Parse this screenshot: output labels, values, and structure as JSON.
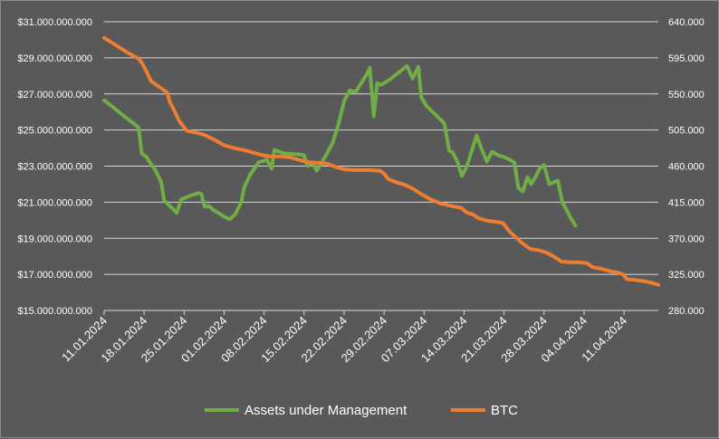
{
  "chart_data": {
    "type": "line",
    "title": "",
    "y_left": {
      "range": [
        15000000000,
        31000000000
      ],
      "ticks": [
        {
          "v": 15000000000,
          "label": "$15.000.000.000"
        },
        {
          "v": 17000000000,
          "label": "$17.000.000.000"
        },
        {
          "v": 19000000000,
          "label": "$19.000.000.000"
        },
        {
          "v": 21000000000,
          "label": "$21.000.000.000"
        },
        {
          "v": 23000000000,
          "label": "$23.000.000.000"
        },
        {
          "v": 25000000000,
          "label": "$25.000.000.000"
        },
        {
          "v": 27000000000,
          "label": "$27.000.000.000"
        },
        {
          "v": 29000000000,
          "label": "$29.000.000.000"
        },
        {
          "v": 31000000000,
          "label": "$31.000.000.000"
        }
      ]
    },
    "y_right": {
      "range": [
        280000,
        640000
      ],
      "ticks": [
        {
          "v": 280000,
          "label": "280.000"
        },
        {
          "v": 325000,
          "label": "325.000"
        },
        {
          "v": 370000,
          "label": "370.000"
        },
        {
          "v": 415000,
          "label": "415.000"
        },
        {
          "v": 460000,
          "label": "460.000"
        },
        {
          "v": 505000,
          "label": "505.000"
        },
        {
          "v": 550000,
          "label": "550.000"
        },
        {
          "v": 595000,
          "label": "595.000"
        },
        {
          "v": 640000,
          "label": "640.000"
        }
      ]
    },
    "x_range": [
      0,
      97
    ],
    "x_ticks": [
      {
        "d": 0,
        "label": "11.01.2024"
      },
      {
        "d": 7,
        "label": "18.01.2024"
      },
      {
        "d": 14,
        "label": "25.01.2024"
      },
      {
        "d": 21,
        "label": "01.02.2024"
      },
      {
        "d": 28,
        "label": "08.02.2024"
      },
      {
        "d": 35,
        "label": "15.02.2024"
      },
      {
        "d": 42,
        "label": "22.02.2024"
      },
      {
        "d": 49,
        "label": "29.02.2024"
      },
      {
        "d": 56,
        "label": "07.03.2024"
      },
      {
        "d": 63,
        "label": "14.03.2024"
      },
      {
        "d": 70,
        "label": "21.03.2024"
      },
      {
        "d": 77,
        "label": "28.03.2024"
      },
      {
        "d": 84,
        "label": "04.04.2024"
      },
      {
        "d": 91,
        "label": "11.04.2024"
      }
    ],
    "x_unit": "days since 11.01.2024",
    "legend_position": "bottom",
    "series": [
      {
        "name": "Assets under Management",
        "axis": "left",
        "color": "#70ad47",
        "points": [
          [
            0,
            26650000000.0
          ],
          [
            1,
            26400000000.0
          ],
          [
            2,
            26150000000.0
          ],
          [
            3,
            25900000000.0
          ],
          [
            4,
            25650000000.0
          ],
          [
            5,
            25400000000.0
          ],
          [
            6,
            25150000000.0
          ],
          [
            6.6,
            23700000000.0
          ],
          [
            7.4,
            23500000000.0
          ],
          [
            8,
            23200000000.0
          ],
          [
            9,
            22750000000.0
          ],
          [
            10,
            22100000000.0
          ],
          [
            10.5,
            21100000000.0
          ],
          [
            12,
            20650000000.0
          ],
          [
            12.7,
            20400000000.0
          ],
          [
            13.5,
            21150000000.0
          ],
          [
            15,
            21350000000.0
          ],
          [
            16.5,
            21500000000.0
          ],
          [
            17,
            21450000000.0
          ],
          [
            17.6,
            20750000000.0
          ],
          [
            18.3,
            20800000000.0
          ],
          [
            19,
            20600000000.0
          ],
          [
            20,
            20400000000.0
          ],
          [
            21,
            20200000000.0
          ],
          [
            22,
            20050000000.0
          ],
          [
            23,
            20350000000.0
          ],
          [
            24,
            21000000000.0
          ],
          [
            24.5,
            21800000000.0
          ],
          [
            25.5,
            22500000000.0
          ],
          [
            27,
            23200000000.0
          ],
          [
            28.5,
            23350000000.0
          ],
          [
            29.3,
            22850000000.0
          ],
          [
            29.8,
            23900000000.0
          ],
          [
            31.5,
            23700000000.0
          ],
          [
            34,
            23650000000.0
          ],
          [
            35,
            23600000000.0
          ],
          [
            35.6,
            23000000000.0
          ],
          [
            36.5,
            23200000000.0
          ],
          [
            37.2,
            22750000000.0
          ],
          [
            38,
            23150000000.0
          ],
          [
            39,
            23700000000.0
          ],
          [
            40,
            24300000000.0
          ],
          [
            41,
            25300000000.0
          ],
          [
            42,
            26600000000.0
          ],
          [
            43,
            27200000000.0
          ],
          [
            44,
            27100000000.0
          ],
          [
            45,
            27600000000.0
          ],
          [
            46,
            28100000000.0
          ],
          [
            46.5,
            28450000000.0
          ],
          [
            47.2,
            25750000000.0
          ],
          [
            47.8,
            27600000000.0
          ],
          [
            48.5,
            27500000000.0
          ],
          [
            50,
            27800000000.0
          ],
          [
            51,
            28050000000.0
          ],
          [
            52,
            28300000000.0
          ],
          [
            53,
            28550000000.0
          ],
          [
            54,
            27850000000.0
          ],
          [
            55,
            28500000000.0
          ],
          [
            55.5,
            26800000000.0
          ],
          [
            56.5,
            26300000000.0
          ],
          [
            58,
            25850000000.0
          ],
          [
            59.3,
            25450000000.0
          ],
          [
            59.6,
            25300000000.0
          ],
          [
            60.4,
            23850000000.0
          ],
          [
            61,
            23750000000.0
          ],
          [
            61.9,
            23200000000.0
          ],
          [
            62.6,
            22450000000.0
          ],
          [
            63.5,
            23000000000.0
          ],
          [
            64.5,
            24000000000.0
          ],
          [
            65.2,
            24700000000.0
          ],
          [
            66,
            24000000000.0
          ],
          [
            67,
            23250000000.0
          ],
          [
            67.9,
            23800000000.0
          ],
          [
            69,
            23600000000.0
          ],
          [
            70,
            23500000000.0
          ],
          [
            71,
            23350000000.0
          ],
          [
            71.8,
            23200000000.0
          ],
          [
            72.5,
            21800000000.0
          ],
          [
            73.3,
            21600000000.0
          ],
          [
            74.1,
            22400000000.0
          ],
          [
            74.7,
            22000000000.0
          ],
          [
            75.5,
            22400000000.0
          ],
          [
            76.3,
            22900000000.0
          ],
          [
            77,
            23050000000.0
          ],
          [
            77.9,
            22000000000.0
          ],
          [
            78.7,
            22100000000.0
          ],
          [
            79.4,
            22200000000.0
          ],
          [
            80.2,
            21000000000.0
          ],
          [
            80.9,
            20600000000.0
          ],
          [
            81.7,
            20100000000.0
          ],
          [
            82.5,
            19700000000.0
          ]
        ]
      },
      {
        "name": "BTC",
        "axis": "right",
        "color": "#ed7d31",
        "points": [
          [
            0,
            620000
          ],
          [
            2,
            611000
          ],
          [
            4,
            602000
          ],
          [
            6,
            594000
          ],
          [
            6.6,
            589000
          ],
          [
            7.4,
            578000
          ],
          [
            8.2,
            566000
          ],
          [
            9,
            562000
          ],
          [
            10,
            557000
          ],
          [
            11,
            552000
          ],
          [
            11.5,
            540000
          ],
          [
            12.3,
            529000
          ],
          [
            13,
            518000
          ],
          [
            13.7,
            511000
          ],
          [
            14.5,
            504000
          ],
          [
            16,
            502000
          ],
          [
            17.5,
            499000
          ],
          [
            19,
            494000
          ],
          [
            21,
            486000
          ],
          [
            23,
            482000
          ],
          [
            24.5,
            480000
          ],
          [
            26,
            477000
          ],
          [
            27.5,
            474000
          ],
          [
            29,
            472000
          ],
          [
            31,
            472000
          ],
          [
            32.5,
            471000
          ],
          [
            34,
            468000
          ],
          [
            35.6,
            465000
          ],
          [
            37.5,
            464000
          ],
          [
            39,
            463000
          ],
          [
            40.5,
            459000
          ],
          [
            42,
            456000
          ],
          [
            44,
            455000
          ],
          [
            46.5,
            455000
          ],
          [
            48.3,
            454000
          ],
          [
            49.1,
            450000
          ],
          [
            49.7,
            444000
          ],
          [
            51,
            440000
          ],
          [
            52.5,
            437000
          ],
          [
            54,
            432000
          ],
          [
            55.5,
            425000
          ],
          [
            57,
            419000
          ],
          [
            59,
            413000
          ],
          [
            61,
            410000
          ],
          [
            62.5,
            408000
          ],
          [
            63.5,
            402000
          ],
          [
            64.5,
            400000
          ],
          [
            65.5,
            395000
          ],
          [
            67,
            392000
          ],
          [
            69,
            390000
          ],
          [
            69.8,
            389000
          ],
          [
            71,
            378000
          ],
          [
            73,
            365000
          ],
          [
            74.5,
            357000
          ],
          [
            76,
            355000
          ],
          [
            77.5,
            352000
          ],
          [
            79,
            346000
          ],
          [
            80,
            341000
          ],
          [
            81.5,
            340000
          ],
          [
            83,
            340000
          ],
          [
            84.5,
            339000
          ],
          [
            85.5,
            334000
          ],
          [
            87,
            332000
          ],
          [
            88.5,
            329000
          ],
          [
            90,
            327000
          ],
          [
            90.8,
            325000
          ],
          [
            91.5,
            319000
          ],
          [
            93,
            318000
          ],
          [
            95,
            316000
          ],
          [
            97,
            312000
          ]
        ]
      }
    ]
  }
}
